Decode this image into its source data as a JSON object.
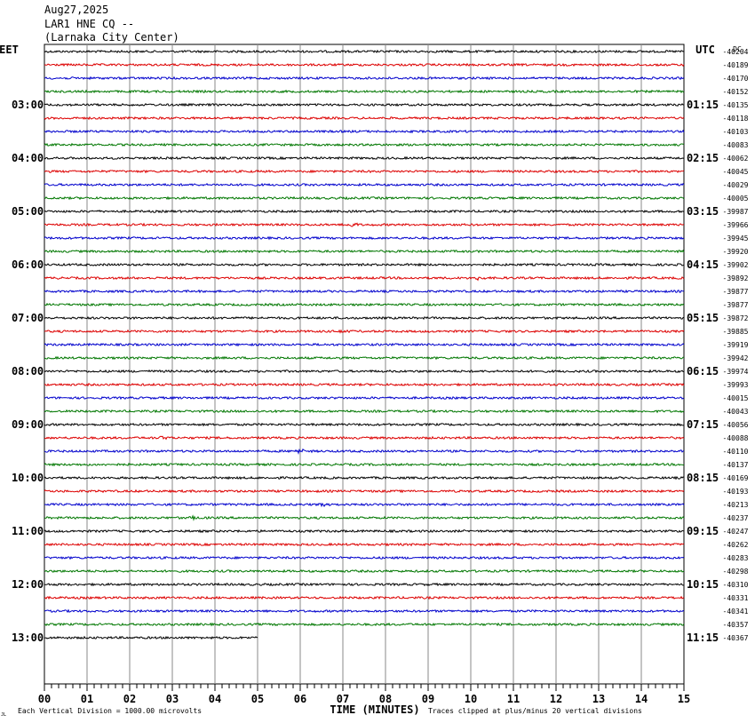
{
  "header": {
    "date": "Aug27,2025",
    "station": "LAR1 HNE CQ --",
    "location": "(Larnaka City Center)"
  },
  "left_axis_label": "EET",
  "right_axis_label": "UTC",
  "dc_label": "DC",
  "footer": {
    "scale_note": "Each Vertical Division = 1000.00 microvolts",
    "xlabel": "TIME (MINUTES)",
    "clip_note": "Traces clipped at plus/minus 20 vertical divisions",
    "corner_mark": "JL"
  },
  "chart_data": {
    "type": "line",
    "trace_colors": [
      "#000000",
      "#dd0000",
      "#0000cc",
      "#007700"
    ],
    "x": {
      "range": [
        0,
        15
      ],
      "ticks": [
        "00",
        "01",
        "02",
        "03",
        "04",
        "05",
        "06",
        "07",
        "08",
        "09",
        "10",
        "11",
        "12",
        "13",
        "14",
        "15"
      ]
    },
    "left_times": [
      "03:00",
      "04:00",
      "05:00",
      "06:00",
      "07:00",
      "08:00",
      "09:00",
      "10:00",
      "11:00",
      "12:00",
      "13:00"
    ],
    "right_times": [
      "01:15",
      "02:15",
      "03:15",
      "04:15",
      "05:15",
      "06:15",
      "07:15",
      "08:15",
      "09:15",
      "10:15",
      "11:15"
    ],
    "dc_offsets": [
      "-40204",
      "-40189",
      "-40170",
      "-40152",
      "-40135",
      "-40118",
      "-40103",
      "-40083",
      "-40062",
      "-40045",
      "-40029",
      "-40005",
      "-39987",
      "-39966",
      "-39945",
      "-39920",
      "-39902",
      "-39892",
      "-39877",
      "-39877",
      "-39872",
      "-39885",
      "-39919",
      "-39942",
      "-39974",
      "-39993",
      "-40015",
      "-40043",
      "-40056",
      "-40088",
      "-40110",
      "-40137",
      "-40169",
      "-40193",
      "-40213",
      "-40237",
      "-40247",
      "-40262",
      "-40283",
      "-40298",
      "-40310",
      "-40331",
      "-40341",
      "-40357",
      "-40367"
    ],
    "last_trace_end_minute": 5,
    "events": [
      {
        "trace": 13,
        "minute": 7.2
      },
      {
        "trace": 17,
        "minute": 10.2
      },
      {
        "trace": 21,
        "minute": 7.0
      },
      {
        "trace": 29,
        "minute": 2.8
      },
      {
        "trace": 30,
        "minute": 6.0
      },
      {
        "trace": 34,
        "minute": 6.6
      },
      {
        "trace": 35,
        "minute": 3.5
      }
    ]
  }
}
